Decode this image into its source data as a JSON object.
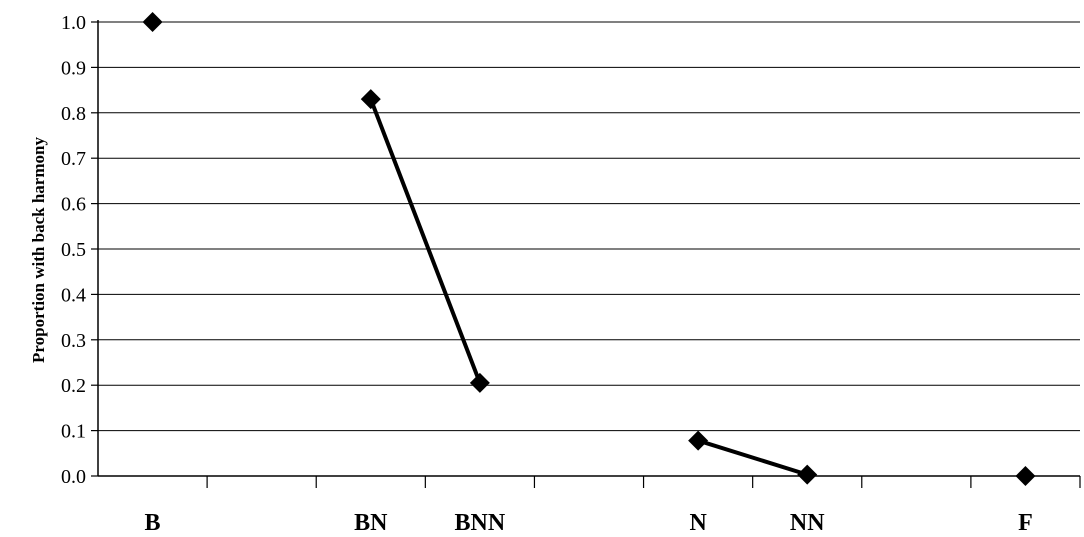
{
  "chart_data": {
    "type": "line",
    "title": "",
    "xlabel": "",
    "ylabel": "Proportion with back harmony",
    "ylim": [
      0.0,
      1.0
    ],
    "y_ticks": [
      "0.0",
      "0.1",
      "0.2",
      "0.3",
      "0.4",
      "0.5",
      "0.6",
      "0.7",
      "0.8",
      "0.9",
      "1.0"
    ],
    "grid": true,
    "legend": "none",
    "categories": [
      "B",
      "",
      "BN",
      "BNN",
      "",
      "N",
      "NN",
      "",
      "F"
    ],
    "points": [
      {
        "label": "B",
        "value": 1.0
      },
      {
        "label": "BN",
        "value": 0.83
      },
      {
        "label": "BNN",
        "value": 0.205
      },
      {
        "label": "N",
        "value": 0.078
      },
      {
        "label": "NN",
        "value": 0.003
      },
      {
        "label": "F",
        "value": 0.0
      }
    ],
    "connected_segments": [
      [
        "BN",
        "BNN"
      ],
      [
        "N",
        "NN"
      ]
    ],
    "colors": {
      "line": "#000000",
      "marker": "#000000",
      "grid": "#000000"
    }
  }
}
